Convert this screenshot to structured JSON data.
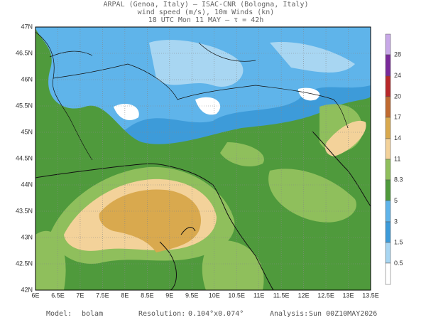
{
  "header": {
    "lines": [
      "ARPAL (Genoa, Italy)  —  ISAC-CNR (Bologna, Italy)",
      "wind speed (m/s), 10m Winds (kn)",
      "18 UTC Mon 11 MAY  —  τ = 42h"
    ]
  },
  "map": {
    "lat_labels": [
      "47N",
      "46.5N",
      "46N",
      "45.5N",
      "45N",
      "44.5N",
      "44N",
      "43.5N",
      "43N",
      "42.5N",
      "42N"
    ],
    "lon_labels": [
      "6E",
      "6.5E",
      "7E",
      "7.5E",
      "8E",
      "8.5E",
      "9E",
      "9.5E",
      "10E",
      "10.5E",
      "11E",
      "11.5E",
      "12E",
      "12.5E",
      "13E",
      "13.5E"
    ]
  },
  "colorbar": {
    "labels": [
      "28",
      "24",
      "20",
      "17",
      "14",
      "11",
      "8.3",
      "5",
      "3",
      "1.5",
      "0.5"
    ]
  },
  "footer": {
    "model_label": "Model:",
    "model": "bolam",
    "resolution_label": "Resolution:",
    "resolution": "0.104°x0.074°",
    "analysis_label": "Analysis:",
    "analysis": "Sun 00Z10MAY2026"
  }
}
